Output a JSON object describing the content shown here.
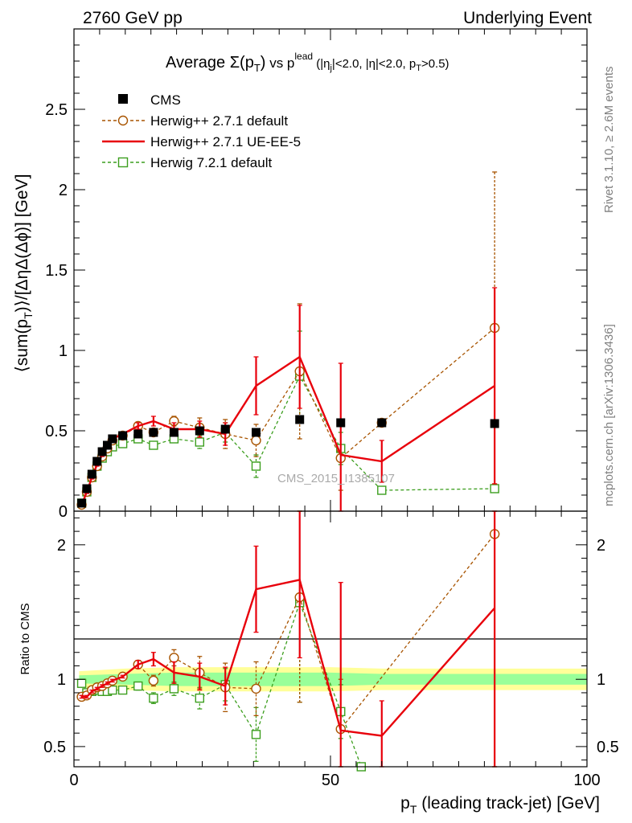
{
  "header": {
    "left": "2760 GeV pp",
    "right": "Underlying Event"
  },
  "side_labels": {
    "rivet": "Rivet 3.1.10, ≥ 2.6M events",
    "mcplots": "mcplots.cern.ch [arXiv:1306.3436]"
  },
  "chart_data": [
    {
      "type": "scatter",
      "title_parts": {
        "prefix": "Average ",
        "sigma": "Σ(p",
        "sub_T": "T",
        "close": ")",
        "vs": " vs p",
        "sup_lead": "lead",
        "cuts": " (|η",
        "sub_j": "j",
        "cuts2": "|<2.0, |η|<2.0, p",
        "sub_T2": "T",
        "cuts3": ">0.5)"
      },
      "ylabel": "⟨sum(p_T)⟩/[ΔηΔ(Δϕ)] [GeV]",
      "ylabel_parts": {
        "a": "⟨sum(p",
        "b": "T",
        "c": ")⟩/[ΔηΔ(Δϕ)] [GeV]"
      },
      "watermark": "CMS_2015_I1385107",
      "xlim": [
        0,
        100
      ],
      "ylim": [
        0,
        3.0
      ],
      "yticks": [
        0,
        0.5,
        1,
        1.5,
        2,
        2.5
      ],
      "ytick_labels": [
        "0",
        "0.5",
        "1",
        "1.5",
        "2",
        "2.5"
      ],
      "series": [
        {
          "name": "CMS",
          "color": "#000000",
          "marker": "filled-square",
          "line": "none",
          "x": [
            1.5,
            2.5,
            3.5,
            4.5,
            5.5,
            6.5,
            7.5,
            9.5,
            12.5,
            15.5,
            19.5,
            24.5,
            29.5,
            35.5,
            44.0,
            52.0,
            60.0,
            82.0
          ],
          "y": [
            0.05,
            0.14,
            0.23,
            0.31,
            0.37,
            0.41,
            0.45,
            0.47,
            0.48,
            0.49,
            0.49,
            0.5,
            0.51,
            0.49,
            0.57,
            0.55,
            0.55,
            0.545
          ]
        },
        {
          "name": "Herwig++ 2.7.1 default",
          "color": "#a85400",
          "marker": "open-circle",
          "line": "dashed",
          "x": [
            1.5,
            2.5,
            3.5,
            4.5,
            5.5,
            6.5,
            7.5,
            9.5,
            12.5,
            15.5,
            19.5,
            24.5,
            29.5,
            35.5,
            44.0,
            52.0,
            60.0,
            82.0
          ],
          "y": [
            0.04,
            0.12,
            0.21,
            0.28,
            0.34,
            0.39,
            0.44,
            0.47,
            0.53,
            0.49,
            0.56,
            0.52,
            0.48,
            0.44,
            0.87,
            0.33,
            0.55,
            1.14
          ],
          "yerr": [
            0.01,
            0.01,
            0.01,
            0.01,
            0.01,
            0.01,
            0.01,
            0.01,
            0.02,
            0.02,
            0.03,
            0.06,
            0.09,
            0.1,
            0.42,
            0.2,
            0.0,
            0.97
          ]
        },
        {
          "name": "Herwig++ 2.7.1 UE-EE-5",
          "color": "#e8000b",
          "marker": "none",
          "line": "solid",
          "x": [
            1.5,
            2.5,
            3.5,
            4.5,
            5.5,
            6.5,
            7.5,
            9.5,
            12.5,
            15.5,
            19.5,
            24.5,
            29.5,
            35.5,
            44.0,
            52.0,
            60.0,
            82.0
          ],
          "y": [
            0.04,
            0.12,
            0.21,
            0.29,
            0.35,
            0.4,
            0.45,
            0.48,
            0.53,
            0.56,
            0.51,
            0.51,
            0.48,
            0.78,
            0.96,
            0.35,
            0.31,
            0.78
          ],
          "yerr": [
            0.01,
            0.01,
            0.01,
            0.01,
            0.01,
            0.01,
            0.01,
            0.01,
            0.02,
            0.03,
            0.04,
            0.05,
            0.07,
            0.18,
            0.32,
            0.57,
            0.13,
            0.61
          ]
        },
        {
          "name": "Herwig 7.2.1 default",
          "color": "#3c9e1e",
          "marker": "open-square",
          "line": "dashed",
          "x": [
            1.5,
            2.5,
            3.5,
            4.5,
            5.5,
            6.5,
            7.5,
            9.5,
            12.5,
            15.5,
            19.5,
            24.5,
            29.5,
            35.5,
            44.0,
            52.0,
            60.0,
            82.0
          ],
          "y": [
            0.05,
            0.12,
            0.21,
            0.28,
            0.33,
            0.37,
            0.4,
            0.42,
            0.45,
            0.41,
            0.45,
            0.43,
            0.49,
            0.28,
            0.84,
            0.39,
            0.13,
            0.14
          ],
          "yerr": [
            0.01,
            0.01,
            0.01,
            0.01,
            0.01,
            0.01,
            0.01,
            0.01,
            0.02,
            0.02,
            0.02,
            0.04,
            0.06,
            0.07,
            0.28,
            0.1,
            0.0,
            0.0
          ]
        }
      ],
      "legend_position": "top-left"
    },
    {
      "type": "scatter",
      "ylabel": "Ratio to CMS",
      "xlabel_parts": {
        "a": "p",
        "b": "T",
        "c": " (leading track-jet) [GeV]"
      },
      "xlim": [
        0,
        100
      ],
      "ylim": [
        0.35,
        2.25
      ],
      "xticks": [
        0,
        50,
        100
      ],
      "xtick_labels": [
        "0",
        "50",
        "100"
      ],
      "yticks": [
        0.5,
        1,
        2
      ],
      "ytick_labels": [
        "0.5",
        "1",
        "2"
      ],
      "bands": {
        "inner_color": "#99ff99",
        "outer_color": "#ffff99",
        "x": [
          1.0,
          10.0,
          20.0,
          30.0,
          40.0,
          50.0,
          60.0,
          70.0,
          80.0,
          100.0
        ],
        "inner": [
          0.03,
          0.04,
          0.05,
          0.05,
          0.05,
          0.05,
          0.04,
          0.04,
          0.04,
          0.04
        ],
        "outer": [
          0.06,
          0.08,
          0.09,
          0.09,
          0.09,
          0.09,
          0.08,
          0.08,
          0.08,
          0.08
        ]
      },
      "series": [
        {
          "name": "Herwig++ 2.7.1 default",
          "color": "#a85400",
          "marker": "open-circle",
          "line": "dashed",
          "x": [
            1.5,
            2.5,
            3.5,
            4.5,
            5.5,
            6.5,
            7.5,
            9.5,
            12.5,
            15.5,
            19.5,
            24.5,
            29.5,
            35.5,
            44.0,
            52.0,
            82.0
          ],
          "y": [
            0.87,
            0.88,
            0.92,
            0.94,
            0.95,
            0.97,
            0.99,
            1.02,
            1.11,
            0.99,
            1.16,
            1.05,
            0.94,
            0.93,
            1.61,
            0.63,
            2.08
          ],
          "yerr": [
            0.01,
            0.01,
            0.01,
            0.01,
            0.01,
            0.01,
            0.01,
            0.01,
            0.03,
            0.04,
            0.06,
            0.12,
            0.18,
            0.2,
            0.78,
            0.37,
            1.76
          ]
        },
        {
          "name": "Herwig++ 2.7.1 UE-EE-5",
          "color": "#e8000b",
          "marker": "none",
          "line": "solid",
          "x": [
            1.5,
            2.5,
            3.5,
            4.5,
            5.5,
            6.5,
            7.5,
            9.5,
            12.5,
            15.5,
            19.5,
            24.5,
            29.5,
            35.5,
            44.0,
            52.0,
            60.0,
            82.0
          ],
          "y": [
            0.87,
            0.87,
            0.91,
            0.93,
            0.95,
            0.97,
            0.99,
            1.02,
            1.11,
            1.15,
            1.05,
            1.02,
            0.95,
            1.67,
            1.74,
            0.62,
            0.58,
            1.53
          ],
          "yerr": [
            0.01,
            0.01,
            0.01,
            0.01,
            0.01,
            0.01,
            0.01,
            0.01,
            0.03,
            0.05,
            0.08,
            0.1,
            0.14,
            0.32,
            0.58,
            1.1,
            0.26,
            1.2
          ]
        },
        {
          "name": "Herwig 7.2.1 default",
          "color": "#3c9e1e",
          "marker": "open-square",
          "line": "dashed",
          "x": [
            1.5,
            2.5,
            3.5,
            4.5,
            5.5,
            6.5,
            7.5,
            9.5,
            12.5,
            15.5,
            19.5,
            24.5,
            29.5,
            35.5,
            44.0,
            52.0,
            56.0
          ],
          "y": [
            0.97,
            0.9,
            0.91,
            0.92,
            0.91,
            0.91,
            0.92,
            0.92,
            0.95,
            0.86,
            0.93,
            0.86,
            0.96,
            0.59,
            1.57,
            0.76,
            0.35
          ],
          "yerr": [
            0.01,
            0.01,
            0.01,
            0.01,
            0.01,
            0.01,
            0.01,
            0.01,
            0.03,
            0.04,
            0.05,
            0.08,
            0.12,
            0.2,
            0.74,
            0.2,
            0.0
          ]
        }
      ]
    }
  ]
}
